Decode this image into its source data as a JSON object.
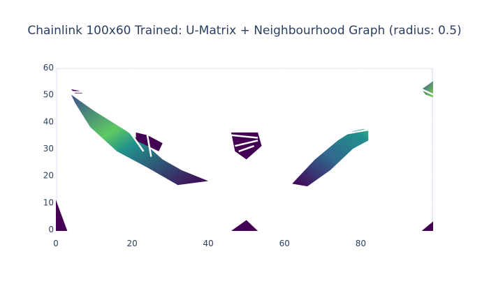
{
  "chart_data": {
    "type": "heatmap",
    "title": "Chainlink 100x60 Trained: U-Matrix + Neighbourhood Graph (radius: 0.5)",
    "xlabel": "",
    "ylabel": "",
    "xlim": [
      0,
      99
    ],
    "ylim": [
      -0.5,
      60
    ],
    "x_ticks": [
      0,
      20,
      40,
      60,
      80
    ],
    "y_ticks": [
      0,
      10,
      20,
      30,
      40,
      50,
      60
    ],
    "grid": true,
    "colorscale": "Viridis",
    "colors": {
      "plot_bg": "#e5ecf6",
      "grid": "#ffffff",
      "mask": "#ffffff",
      "low": "#440154",
      "mid": "#21918c",
      "high": "#fde725",
      "text": "#2a3f5f"
    },
    "filled_regions": [
      {
        "name": "left-diagonal-band",
        "points": [
          [
            4,
            50
          ],
          [
            10,
            44
          ],
          [
            18,
            37
          ],
          [
            24,
            31
          ],
          [
            28,
            26
          ],
          [
            33,
            22
          ],
          [
            40,
            18
          ],
          [
            32,
            16.5
          ],
          [
            24,
            23
          ],
          [
            16,
            29
          ],
          [
            9,
            38
          ],
          [
            5,
            47
          ]
        ]
      },
      {
        "name": "top-left-fragment",
        "points": [
          [
            4,
            52
          ],
          [
            6,
            51.5
          ],
          [
            7,
            50.5
          ],
          [
            5,
            50.5
          ]
        ]
      },
      {
        "name": "upper-left-blob",
        "points": [
          [
            21,
            36
          ],
          [
            24,
            35
          ],
          [
            28,
            32
          ],
          [
            27,
            29
          ],
          [
            24,
            31
          ],
          [
            21,
            33
          ]
        ]
      },
      {
        "name": "center-wedge",
        "points": [
          [
            46,
            36
          ],
          [
            53,
            36
          ],
          [
            54,
            31
          ],
          [
            50,
            26
          ],
          [
            47,
            29
          ]
        ]
      },
      {
        "name": "right-diagonal-band",
        "points": [
          [
            62,
            17
          ],
          [
            68,
            26
          ],
          [
            74,
            33
          ],
          [
            79,
            37.5
          ],
          [
            82,
            37
          ],
          [
            82,
            33
          ],
          [
            78,
            30
          ],
          [
            72,
            22
          ],
          [
            66,
            16
          ]
        ]
      },
      {
        "name": "top-right-corner",
        "points": [
          [
            96,
            52
          ],
          [
            99,
            55
          ],
          [
            99,
            49
          ],
          [
            97,
            50
          ]
        ]
      },
      {
        "name": "bottom-left-corner",
        "points": [
          [
            0,
            11
          ],
          [
            0,
            -0.5
          ],
          [
            3,
            -0.5
          ]
        ]
      },
      {
        "name": "bottom-center-peak",
        "points": [
          [
            46,
            -0.5
          ],
          [
            50,
            3.5
          ],
          [
            53,
            -0.5
          ]
        ]
      },
      {
        "name": "bottom-right-corner",
        "points": [
          [
            96,
            -0.5
          ],
          [
            99,
            3
          ],
          [
            99,
            -0.5
          ]
        ]
      }
    ],
    "neighbourhood_edges": [
      [
        [
          4,
          51
        ],
        [
          8,
          51
        ]
      ],
      [
        [
          19,
          37
        ],
        [
          23,
          29
        ]
      ],
      [
        [
          24,
          35
        ],
        [
          25,
          27
        ]
      ],
      [
        [
          46,
          35
        ],
        [
          53,
          34
        ]
      ],
      [
        [
          47,
          31
        ],
        [
          53,
          33
        ]
      ],
      [
        [
          48,
          29
        ],
        [
          52,
          31
        ]
      ],
      [
        [
          70,
          34
        ],
        [
          82,
          37
        ]
      ],
      [
        [
          72,
          35
        ],
        [
          82,
          38
        ]
      ],
      [
        [
          96,
          52
        ],
        [
          99,
          50
        ]
      ]
    ]
  }
}
